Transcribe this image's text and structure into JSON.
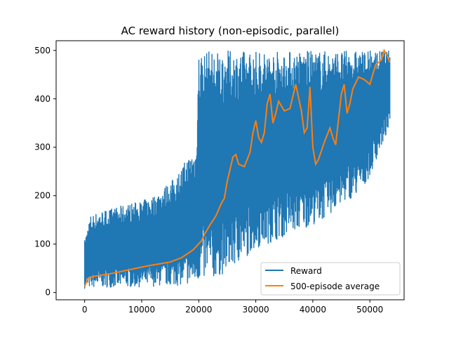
{
  "chart_data": {
    "type": "line",
    "title": "AC reward history (non-episodic, parallel)",
    "xlabel": "",
    "ylabel": "",
    "xlim": [
      -5000,
      56000
    ],
    "ylim": [
      -15,
      520
    ],
    "xticks": [
      0,
      10000,
      20000,
      30000,
      40000,
      50000
    ],
    "xtick_labels": [
      "0",
      "10000",
      "20000",
      "30000",
      "40000",
      "50000"
    ],
    "yticks": [
      0,
      100,
      200,
      300,
      400,
      500
    ],
    "ytick_labels": [
      "0",
      "100",
      "200",
      "300",
      "400",
      "500"
    ],
    "grid": false,
    "legend_position": "lower-right",
    "series": [
      {
        "name": "Reward",
        "color": "#1f77b4",
        "x": [
          0,
          1000,
          3000,
          5000,
          8000,
          10000,
          12000,
          14000,
          16000,
          18000,
          19500,
          20000,
          22000,
          24000,
          26000,
          28000,
          30000,
          32000,
          34000,
          36000,
          38000,
          40000,
          42000,
          44000,
          46000,
          48000,
          50000,
          52000,
          53500
        ],
        "values_low": [
          8,
          9,
          10,
          10,
          10,
          11,
          12,
          13,
          14,
          16,
          18,
          20,
          25,
          35,
          50,
          70,
          90,
          100,
          110,
          120,
          130,
          140,
          150,
          170,
          190,
          200,
          240,
          300,
          340
        ],
        "values_high": [
          110,
          160,
          170,
          175,
          185,
          190,
          200,
          220,
          240,
          280,
          300,
          500,
          500,
          500,
          500,
          500,
          500,
          500,
          500,
          500,
          500,
          500,
          500,
          500,
          500,
          500,
          500,
          500,
          500
        ]
      },
      {
        "name": "500-episode average",
        "color": "#ff7f0e",
        "x": [
          0,
          500,
          1500,
          3000,
          5000,
          7000,
          9000,
          11000,
          13000,
          15000,
          17000,
          19000,
          20500,
          21000,
          22000,
          23000,
          24000,
          24500,
          25000,
          26000,
          26500,
          27000,
          28000,
          29000,
          29500,
          30000,
          30500,
          31000,
          31500,
          32000,
          32500,
          33000,
          33500,
          34000,
          35000,
          36000,
          37000,
          38000,
          38500,
          39000,
          39500,
          40000,
          40500,
          41000,
          42000,
          43000,
          43500,
          44000,
          45000,
          45500,
          46000,
          46500,
          47000,
          48000,
          49000,
          50000,
          51000,
          52000,
          52500,
          53000,
          53500
        ],
        "values": [
          12,
          28,
          33,
          36,
          40,
          45,
          50,
          55,
          59,
          63,
          72,
          88,
          107,
          120,
          140,
          158,
          185,
          195,
          230,
          280,
          285,
          265,
          260,
          290,
          330,
          355,
          320,
          310,
          330,
          390,
          410,
          350,
          370,
          395,
          375,
          380,
          430,
          375,
          330,
          340,
          425,
          300,
          265,
          275,
          310,
          340,
          320,
          305,
          410,
          430,
          370,
          390,
          420,
          445,
          440,
          430,
          470,
          480,
          500,
          490,
          475
        ]
      }
    ]
  }
}
